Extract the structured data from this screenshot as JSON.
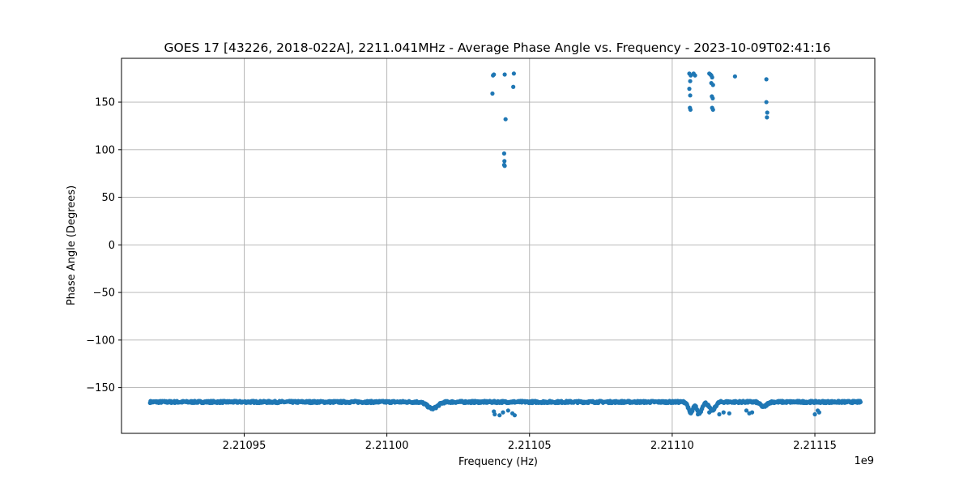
{
  "chart_data": {
    "type": "scatter",
    "title": "GOES 17 [43226, 2018-022A], 2211.041MHz - Average Phase Angle vs. Frequency - 2023-10-09T02:41:16",
    "xlabel": "Frequency (Hz)",
    "ylabel": "Phase Angle (Degrees)",
    "x_offset_label": "1e9",
    "xlim": [
      2210907000,
      2211171000
    ],
    "ylim": [
      -198,
      196
    ],
    "xticks": [
      2210950000,
      2211000000,
      2211050000,
      2211100000,
      2211150000
    ],
    "xtick_labels": [
      "2.21095",
      "2.21100",
      "2.21105",
      "2.21110",
      "2.21115"
    ],
    "yticks": [
      150,
      100,
      50,
      0,
      -50,
      -100,
      -150
    ],
    "ytick_labels": [
      "150",
      "100",
      "50",
      "0",
      "−50",
      "−100",
      "−150"
    ],
    "grid": true,
    "marker_color": "#1f77b4",
    "series": [
      {
        "baseline": {
          "x_range": [
            2210917000,
            2211166000
          ],
          "base_y": -165,
          "dips": [
            {
              "x": 2211016000,
              "width": 2500,
              "depth": 7
            },
            {
              "x": 2211106500,
              "width": 1100,
              "depth": 12
            },
            {
              "x": 2211109500,
              "width": 1200,
              "depth": 12
            },
            {
              "x": 2211114000,
              "width": 1500,
              "depth": 9
            },
            {
              "x": 2211132000,
              "width": 1500,
              "depth": 5
            }
          ]
        },
        "points": [
          [
            2211037200,
            178
          ],
          [
            2211037500,
            179
          ],
          [
            2211037000,
            159
          ],
          [
            2211041300,
            179
          ],
          [
            2211044500,
            180
          ],
          [
            2211044300,
            166
          ],
          [
            2211041600,
            132
          ],
          [
            2211041100,
            96
          ],
          [
            2211041200,
            88
          ],
          [
            2211041100,
            84
          ],
          [
            2211041300,
            83
          ],
          [
            2211106000,
            180
          ],
          [
            2211106500,
            178
          ],
          [
            2211107500,
            180
          ],
          [
            2211108000,
            178
          ],
          [
            2211106300,
            172
          ],
          [
            2211106000,
            164
          ],
          [
            2211106300,
            157
          ],
          [
            2211106200,
            144
          ],
          [
            2211106400,
            142
          ],
          [
            2211113000,
            180
          ],
          [
            2211113400,
            179
          ],
          [
            2211113700,
            178
          ],
          [
            2211114000,
            176
          ],
          [
            2211113700,
            170
          ],
          [
            2211114300,
            168
          ],
          [
            2211113900,
            156
          ],
          [
            2211114200,
            154
          ],
          [
            2211114000,
            144
          ],
          [
            2211114300,
            142
          ],
          [
            2211122000,
            177
          ],
          [
            2211133000,
            174
          ],
          [
            2211133000,
            150
          ],
          [
            2211133300,
            139
          ],
          [
            2211133200,
            134
          ],
          [
            2211037500,
            -175
          ],
          [
            2211037800,
            -178
          ],
          [
            2211039500,
            -179
          ],
          [
            2211040700,
            -176
          ],
          [
            2211042500,
            -174
          ],
          [
            2211044000,
            -177
          ],
          [
            2211044800,
            -179
          ],
          [
            2211109000,
            -178
          ],
          [
            2211113000,
            -176
          ],
          [
            2211116500,
            -178
          ],
          [
            2211118000,
            -176
          ],
          [
            2211120000,
            -177
          ],
          [
            2211126000,
            -174
          ],
          [
            2211127000,
            -177
          ],
          [
            2211128000,
            -176
          ],
          [
            2211150000,
            -178
          ],
          [
            2211151500,
            -176
          ],
          [
            2211151000,
            -174
          ]
        ]
      }
    ]
  }
}
